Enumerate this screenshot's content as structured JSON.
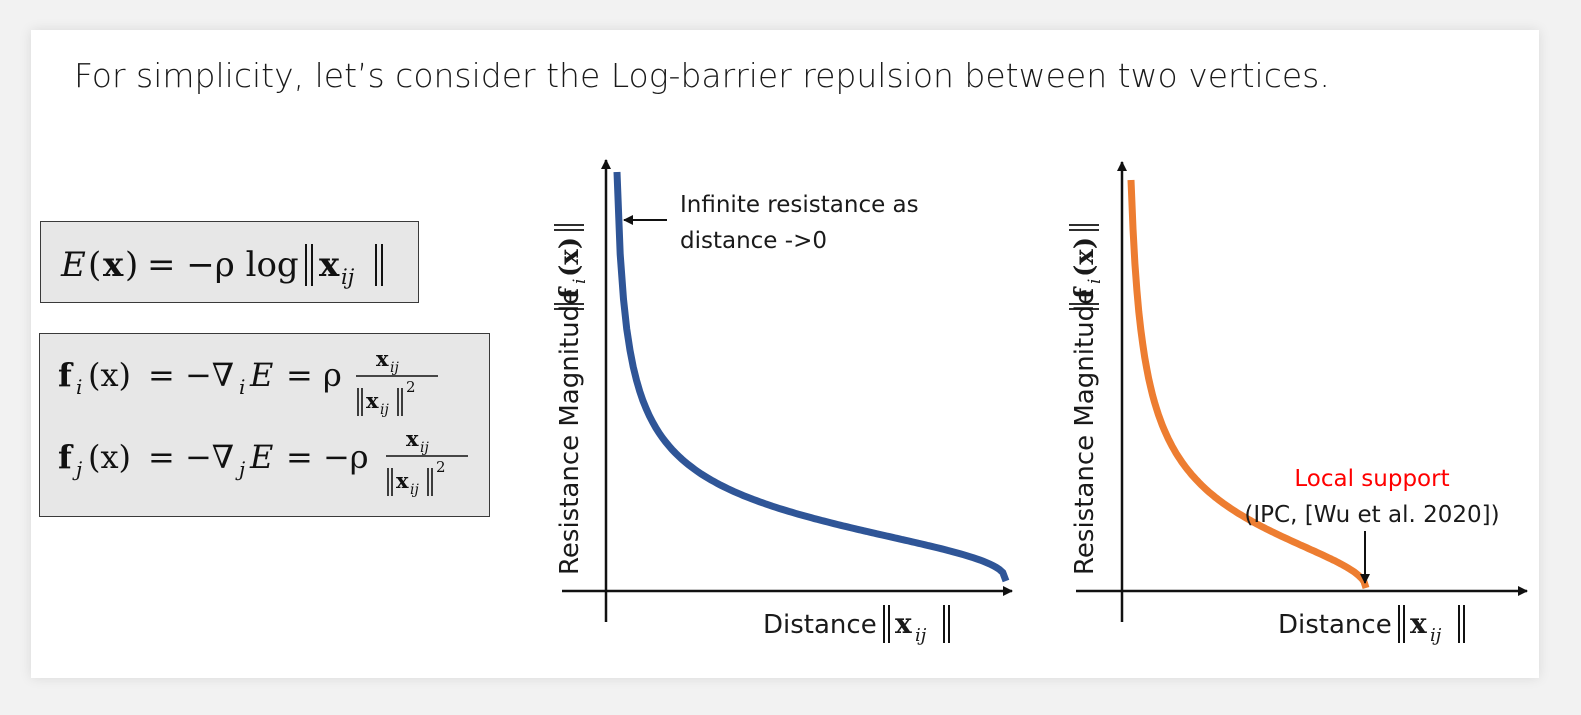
{
  "slide": {
    "heading": "For simplicity, let’s consider the Log-barrier repulsion between two vertices."
  },
  "equations": {
    "energy": {
      "lhs_E": "E",
      "lhs_open": "(",
      "lhs_x": "x",
      "lhs_close": ")",
      "rhs": "= −ρ log",
      "norm_var": "x",
      "norm_sub": "ij"
    },
    "forces": {
      "fi_f": "f",
      "fi_sub": "i",
      "fi_arg": "(x)",
      "fi_mid": "= −∇",
      "fi_grad_sub": "i",
      "fi_E": "E",
      "fi_rho": "= ρ",
      "fj_f": "f",
      "fj_sub": "j",
      "fj_arg": "(x)",
      "fj_mid": "= −∇",
      "fj_grad_sub": "j",
      "fj_E": "E",
      "fj_rho": "= −ρ",
      "frac_num": "x",
      "frac_num_sub": "ij",
      "frac_den": "x",
      "frac_den_sub": "ij",
      "frac_power": "2"
    }
  },
  "plots": {
    "left": {
      "ylabel_text": "Resistance Magnitude",
      "ylabel_f": "f",
      "ylabel_sub": "i",
      "ylabel_arg": "(x)",
      "xlabel_text": "Distance",
      "xlabel_var": "x",
      "xlabel_sub": "ij",
      "annotation_line1": "Infinite resistance as",
      "annotation_line2": "distance ->0",
      "curve_color": "#2f5597"
    },
    "right": {
      "ylabel_text": "Resistance Magnitude",
      "ylabel_f": "f",
      "ylabel_sub": "i",
      "ylabel_arg": "(x)",
      "xlabel_text": "Distance",
      "xlabel_var": "x",
      "xlabel_sub": "ij",
      "annotation_red": "Local support",
      "annotation_ref": "(IPC, [Wu et al. 2020])",
      "curve_color": "#ed7d31",
      "annotation_color": "#ff0000"
    }
  }
}
